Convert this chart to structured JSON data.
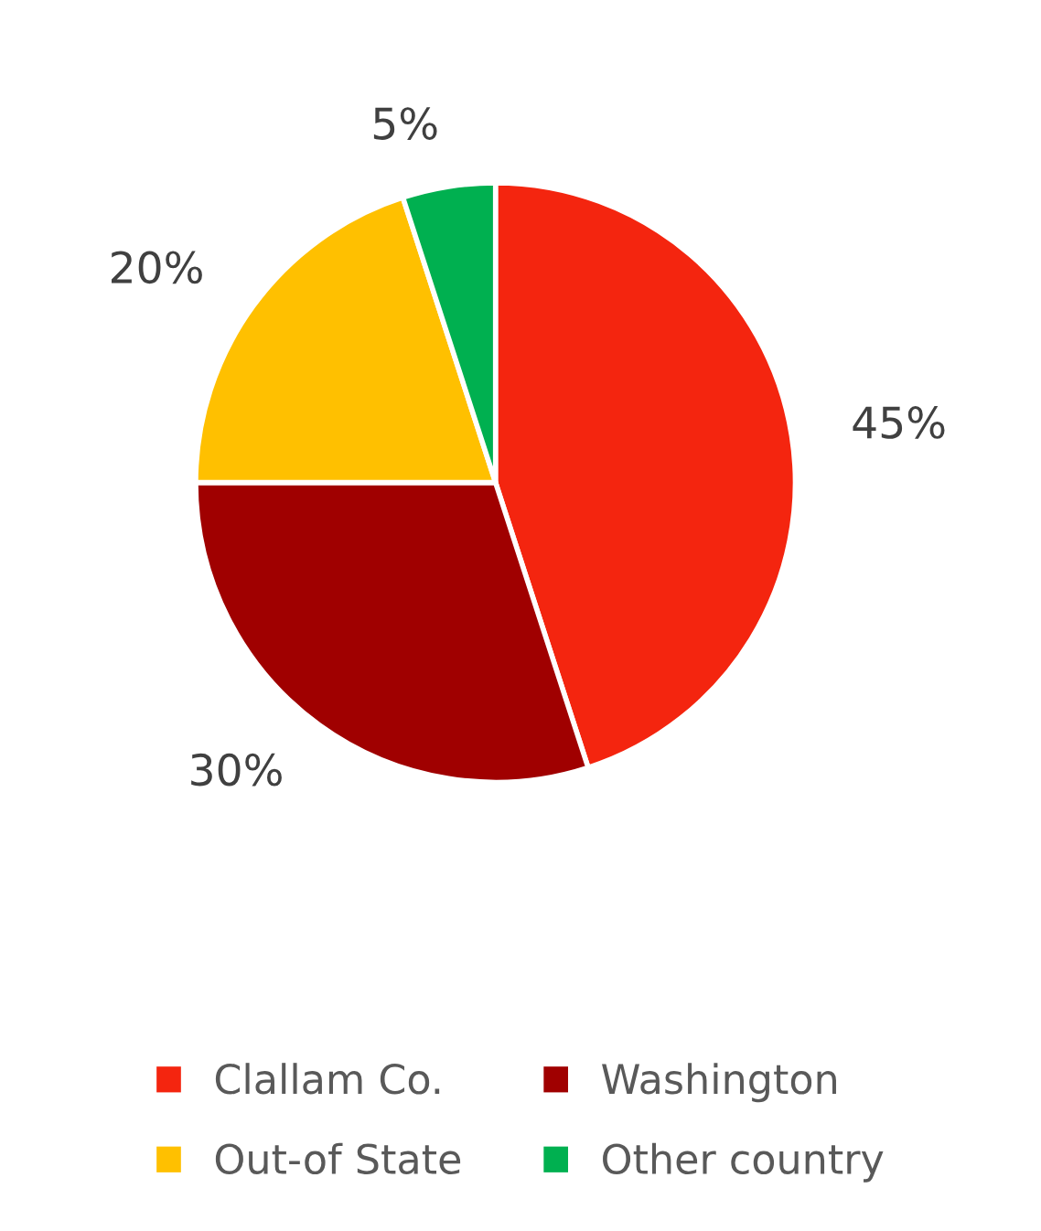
{
  "chart_data": {
    "type": "pie",
    "categories": [
      "Clallam Co.",
      "Washington",
      "Out-of State",
      "Other country"
    ],
    "values": [
      45,
      30,
      20,
      5
    ],
    "colors": [
      "#f4250f",
      "#a00000",
      "#ffc000",
      "#00b050"
    ],
    "value_labels": [
      "45%",
      "30%",
      "20%",
      "5%"
    ],
    "legend": "bottom"
  }
}
